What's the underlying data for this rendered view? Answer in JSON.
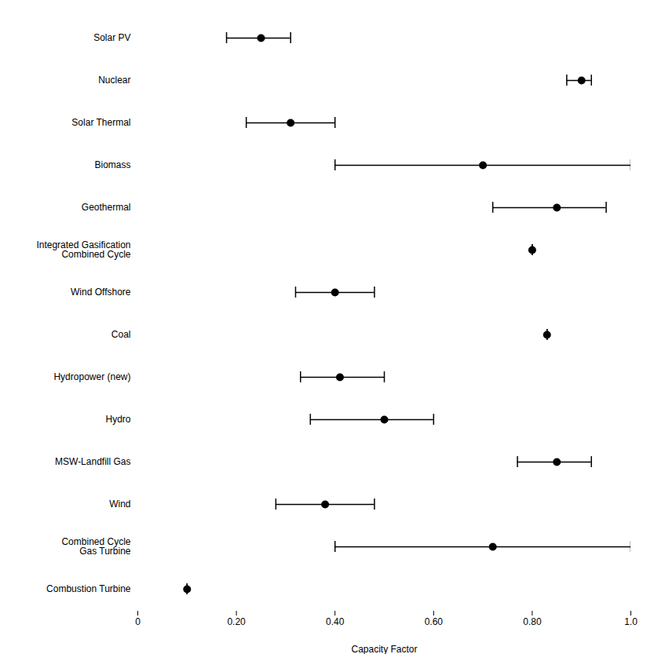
{
  "chart_data": {
    "type": "dot",
    "orientation": "horizontal",
    "categories": [
      "Solar PV",
      "Nuclear",
      "Solar Thermal",
      "Biomass",
      "Geothermal",
      "Integrated Gasification\nCombined Cycle",
      "Wind Offshore",
      "Coal",
      "Hydropower (new)",
      "Hydro",
      "MSW-Landfill Gas",
      "Wind",
      "Combined Cycle\nGas Turbine",
      "Combustion Turbine"
    ],
    "values": [
      0.25,
      0.9,
      0.31,
      0.7,
      0.85,
      0.8,
      0.4,
      0.83,
      0.41,
      0.5,
      0.85,
      0.38,
      0.72,
      0.1
    ],
    "lower": [
      0.18,
      0.87,
      0.22,
      0.4,
      0.72,
      0.8,
      0.32,
      0.83,
      0.33,
      0.35,
      0.77,
      0.28,
      0.4,
      0.1
    ],
    "upper": [
      0.31,
      0.92,
      0.4,
      1.0,
      0.95,
      0.8,
      0.48,
      0.83,
      0.5,
      0.6,
      0.92,
      0.48,
      1.0,
      0.1
    ],
    "xlabel": "Capacity Factor",
    "xlim": [
      0,
      1.0
    ],
    "xticks": [
      0,
      {
        "value": 0.2,
        "label": "0.20"
      },
      {
        "value": 0.4,
        "label": "0.40"
      },
      {
        "value": 0.6,
        "label": "0.60"
      },
      {
        "value": 0.8,
        "label": "0.80"
      },
      {
        "value": 1.0,
        "label": "1.0"
      }
    ],
    "grid": false
  }
}
